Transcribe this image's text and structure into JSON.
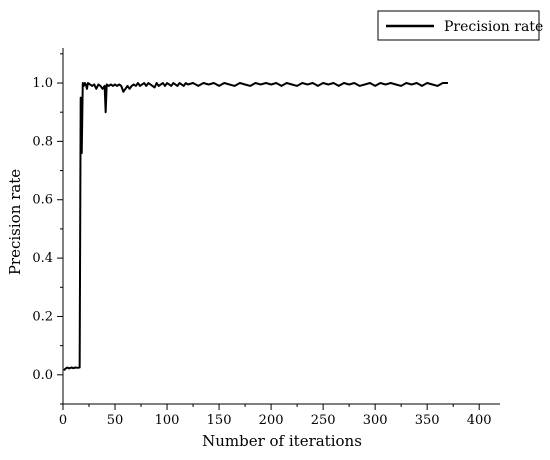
{
  "chart_data": {
    "type": "line",
    "xlabel": "Number of iterations",
    "ylabel": "Precision rate",
    "xlim": [
      0,
      420
    ],
    "ylim": [
      -0.1,
      1.12
    ],
    "xticks": [
      0,
      50,
      100,
      150,
      200,
      250,
      300,
      350,
      400
    ],
    "yticks": [
      0.0,
      0.2,
      0.4,
      0.6,
      0.8,
      1.0
    ],
    "ytick_labels": [
      "0.0",
      "0.2",
      "0.4",
      "0.6",
      "0.8",
      "1.0"
    ],
    "legend_position": "top-right",
    "grid": false,
    "color": "#000000",
    "series": [
      {
        "name": "Precision rate",
        "x": [
          1,
          2,
          4,
          6,
          8,
          10,
          12,
          14,
          16,
          17,
          18,
          19,
          20,
          21,
          22,
          23,
          24,
          26,
          28,
          30,
          32,
          34,
          36,
          38,
          40,
          41,
          42,
          44,
          46,
          48,
          50,
          52,
          54,
          56,
          58,
          60,
          62,
          64,
          66,
          68,
          70,
          72,
          74,
          76,
          78,
          80,
          82,
          84,
          86,
          88,
          90,
          92,
          94,
          96,
          98,
          100,
          102,
          104,
          106,
          108,
          110,
          112,
          114,
          116,
          118,
          120,
          125,
          130,
          135,
          140,
          145,
          150,
          155,
          160,
          165,
          170,
          175,
          180,
          185,
          190,
          195,
          200,
          205,
          210,
          215,
          220,
          225,
          230,
          235,
          240,
          245,
          250,
          255,
          260,
          265,
          270,
          275,
          280,
          285,
          290,
          295,
          300,
          305,
          310,
          315,
          320,
          325,
          330,
          335,
          340,
          345,
          350,
          355,
          360,
          365,
          370
        ],
        "y": [
          0.015,
          0.02,
          0.025,
          0.022,
          0.025,
          0.023,
          0.025,
          0.024,
          0.025,
          0.95,
          0.76,
          1.0,
          0.99,
          1.0,
          0.995,
          0.98,
          1.0,
          0.995,
          0.99,
          0.995,
          0.98,
          0.995,
          0.99,
          0.98,
          0.99,
          0.9,
          0.995,
          0.99,
          0.995,
          0.99,
          0.995,
          0.99,
          0.995,
          0.99,
          0.97,
          0.98,
          0.99,
          0.98,
          0.99,
          0.995,
          0.99,
          1.0,
          0.99,
          0.995,
          1.0,
          0.99,
          1.0,
          0.995,
          0.99,
          0.985,
          1.0,
          0.99,
          0.995,
          1.0,
          0.99,
          1.0,
          0.995,
          0.99,
          1.0,
          0.995,
          0.99,
          1.0,
          0.995,
          0.99,
          1.0,
          0.995,
          1.0,
          0.99,
          1.0,
          0.995,
          1.0,
          0.99,
          1.0,
          0.995,
          0.99,
          1.0,
          0.995,
          0.99,
          1.0,
          0.995,
          1.0,
          0.995,
          1.0,
          0.99,
          1.0,
          0.995,
          0.99,
          1.0,
          0.995,
          1.0,
          0.99,
          1.0,
          0.995,
          1.0,
          0.99,
          1.0,
          0.995,
          1.0,
          0.99,
          0.995,
          1.0,
          0.99,
          1.0,
          0.995,
          1.0,
          0.995,
          0.99,
          1.0,
          0.995,
          1.0,
          0.99,
          1.0,
          0.995,
          0.99,
          1.0,
          1.0
        ]
      }
    ]
  }
}
